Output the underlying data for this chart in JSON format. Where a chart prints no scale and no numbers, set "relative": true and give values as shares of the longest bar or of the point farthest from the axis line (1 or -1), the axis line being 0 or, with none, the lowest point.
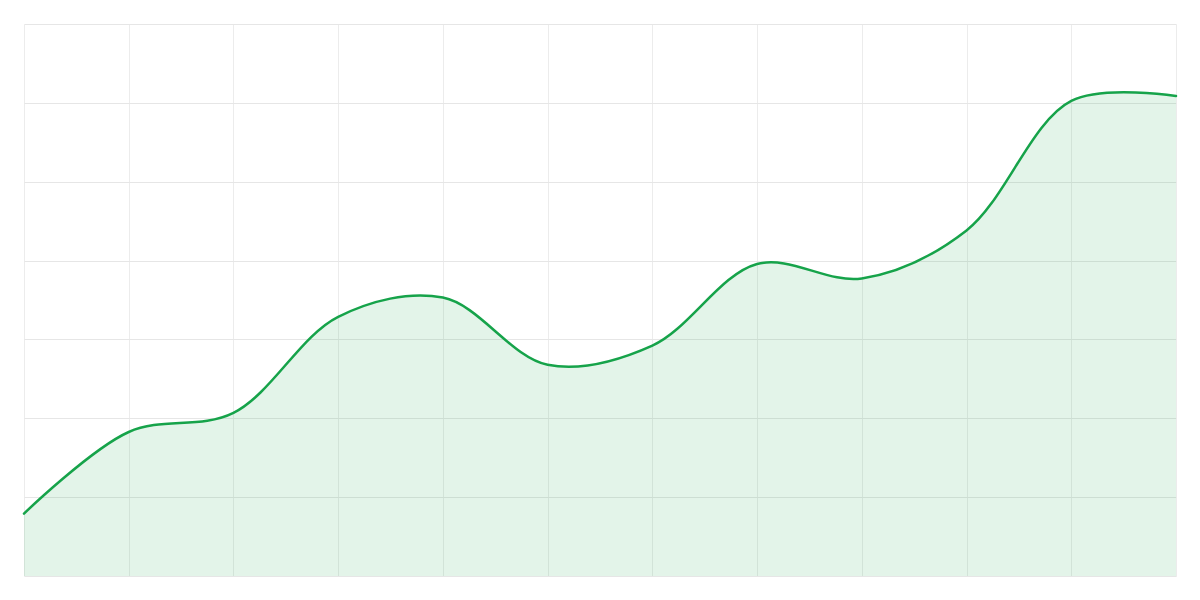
{
  "chart_data": {
    "type": "area",
    "relative": true,
    "categories": [
      null,
      null,
      null,
      null,
      null,
      null,
      null,
      null,
      null,
      null,
      null,
      null
    ],
    "values": [
      0.13,
      0.3,
      0.34,
      0.54,
      0.58,
      0.44,
      0.48,
      0.65,
      0.62,
      0.72,
      0.99,
      1
    ],
    "color": "#16a34a",
    "grid": true
  }
}
